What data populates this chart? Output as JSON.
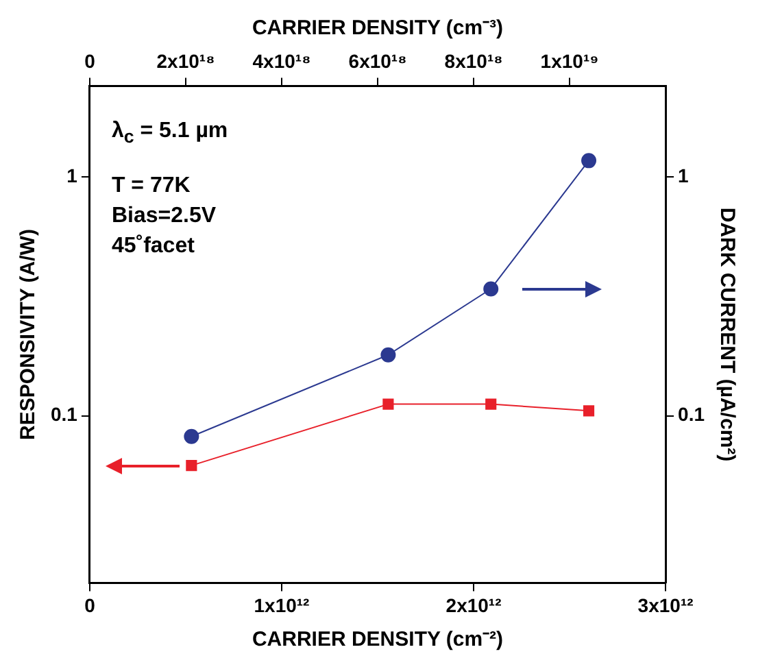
{
  "chart_data": {
    "type": "line",
    "xlabel": "CARRIER DENSITY (cm⁻²)",
    "x2label": "CARRIER DENSITY (cm⁻³)",
    "ylabel": "RESPONSIVITY (A/W)",
    "y2label": "DARK CURRENT (µA/cm²)",
    "annotations": [
      "λ$_{c}$ = 5.1 µm",
      "T = 77K",
      "Bias=2.5V",
      "45˚facet"
    ],
    "x": [
      530000000000.0,
      1555000000000.0,
      2090000000000.0,
      2600000000000.0
    ],
    "series": [
      {
        "color": "#e8202a",
        "values": [
          0.062,
          0.112,
          0.112,
          0.105
        ],
        "marker": "square"
      },
      {
        "color": "#2b3990",
        "values": [
          0.082,
          0.18,
          0.34,
          1.17
        ],
        "marker": "circle"
      }
    ],
    "xlim": [
      0,
      3000000000000.0
    ],
    "xticks": [
      0,
      {
        "value": 1000000000000.0,
        "label": "1x10¹²"
      },
      {
        "value": 2000000000000.0,
        "label": "2x10¹²"
      },
      {
        "value": 3000000000000.0,
        "label": "3x10¹²"
      }
    ],
    "x2lim": [
      0,
      1.2e+19
    ],
    "x2ticks": [
      0,
      {
        "value": 2e+18,
        "label": "2x10¹⁸"
      },
      {
        "value": 4e+18,
        "label": "4x10¹⁸"
      },
      {
        "value": 6e+18,
        "label": "6x10¹⁸"
      },
      {
        "value": 8e+18,
        "label": "8x10¹⁸"
      },
      {
        "value": 1e+19,
        "label": "1x10¹⁹"
      }
    ],
    "ylim": [
      0.02,
      2.4
    ],
    "yticks": [
      {
        "value": 0.1,
        "label": "0.1"
      },
      {
        "value": 1,
        "label": "1"
      }
    ],
    "log": "y",
    "grid": false,
    "legend": false,
    "line_style": "solid"
  }
}
